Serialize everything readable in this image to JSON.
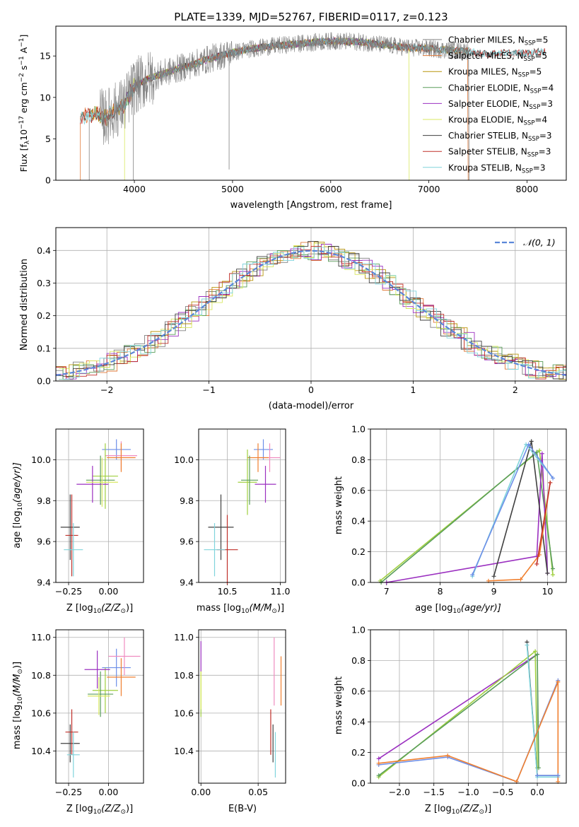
{
  "figure_title": "PLATE=1339, MJD=52767, FIBERID=0117, z=0.123",
  "colors": {
    "chabrier_miles": "#808080",
    "salpeter_miles": "#e07a3a",
    "kroupa_miles": "#b8960c",
    "chabrier_elodie": "#5a9e5a",
    "salpeter_elodie": "#9b30c0",
    "kroupa_elodie": "#d8e860",
    "chabrier_stelib": "#404040",
    "salpeter_stelib": "#c0302a",
    "kroupa_stelib": "#80d4dc",
    "normal_curve": "#5b87d8",
    "pink": "#f08cc0",
    "blue": "#6d8fe8",
    "orange": "#f08030",
    "lime": "#a0d040",
    "grid": "#b0b0b0"
  },
  "chart_data": [
    {
      "id": "spectrum",
      "type": "line",
      "xlabel": "wavelength [Angstrom, rest frame]",
      "ylabel_main": "Flux [f",
      "ylabel_sub": "λ",
      "ylabel_mid": "10",
      "ylabel_sup1": "−17",
      "ylabel_rest": " erg cm",
      "ylabel_sup2": "−2",
      "ylabel_rest2": " s",
      "ylabel_sup3": "−1",
      "ylabel_rest3": " A",
      "ylabel_sup4": "−1",
      "ylabel_end": "]",
      "xlim": [
        3200,
        8400
      ],
      "ylim": [
        0,
        18.6
      ],
      "xticks": [
        "4000",
        "5000",
        "6000",
        "7000",
        "8000"
      ],
      "yticks": [
        "0",
        "5",
        "10",
        "15"
      ],
      "legend_position": "top-right",
      "legend": [
        {
          "name": "Chabrier MILES, N",
          "sub": "SSP",
          "val": "=5",
          "color_key": "chabrier_miles"
        },
        {
          "name": "Salpeter MILES, N",
          "sub": "SSP",
          "val": "=5",
          "color_key": "salpeter_miles"
        },
        {
          "name": "Kroupa MILES, N",
          "sub": "SSP",
          "val": "=5",
          "color_key": "kroupa_miles"
        },
        {
          "name": "Chabrier ELODIE, N",
          "sub": "SSP",
          "val": "=4",
          "color_key": "chabrier_elodie"
        },
        {
          "name": "Salpeter ELODIE, N",
          "sub": "SSP",
          "val": "=3",
          "color_key": "salpeter_elodie"
        },
        {
          "name": "Kroupa ELODIE, N",
          "sub": "SSP",
          "val": "=4",
          "color_key": "kroupa_elodie"
        },
        {
          "name": "Chabrier STELIB, N",
          "sub": "SSP",
          "val": "=3",
          "color_key": "chabrier_stelib"
        },
        {
          "name": "Salpeter STELIB, N",
          "sub": "SSP",
          "val": "=3",
          "color_key": "salpeter_stelib"
        },
        {
          "name": "Kroupa STELIB, N",
          "sub": "SSP",
          "val": "=3",
          "color_key": "kroupa_stelib"
        }
      ],
      "continuum": [
        [
          3450,
          7.5
        ],
        [
          3600,
          8.0
        ],
        [
          3700,
          7.5
        ],
        [
          3800,
          8.4
        ],
        [
          3900,
          9.2
        ],
        [
          4000,
          11.3
        ],
        [
          4100,
          12.0
        ],
        [
          4200,
          12.5
        ],
        [
          4400,
          13.3
        ],
        [
          4600,
          14.0
        ],
        [
          4800,
          14.8
        ],
        [
          5000,
          15.4
        ],
        [
          5200,
          15.9
        ],
        [
          5500,
          16.3
        ],
        [
          5800,
          16.6
        ],
        [
          6000,
          16.8
        ],
        [
          6300,
          16.7
        ],
        [
          6500,
          16.4
        ],
        [
          6800,
          16.0
        ],
        [
          7000,
          15.9
        ],
        [
          7200,
          15.7
        ],
        [
          7400,
          15.6
        ],
        [
          7600,
          15.2
        ],
        [
          7800,
          15.4
        ],
        [
          8000,
          15.3
        ],
        [
          8200,
          15.6
        ]
      ],
      "observed_range": [
        3650,
        7400
      ]
    },
    {
      "id": "residuals",
      "type": "histogram",
      "xlabel": "(data-model)/error",
      "ylabel": "Normed distribution",
      "xlim": [
        -2.5,
        2.5
      ],
      "ylim": [
        0,
        0.47
      ],
      "xticks": [
        "−2",
        "−1",
        "0",
        "1",
        "2"
      ],
      "yticks": [
        "0.0",
        "0.1",
        "0.2",
        "0.3",
        "0.4"
      ],
      "legend_position": "top-right",
      "normal_label": "𝒩(0, 1)",
      "bin_width": 0.1
    },
    {
      "id": "age_vs_Z",
      "type": "errorbar",
      "xlabel": "Z [log",
      "xlabel_sub": "10",
      "xlabel_rest": "(Z/Z",
      "xlabel_sub2": "⊙",
      "xlabel_end": ")]",
      "ylabel": "age  [log",
      "ylabel_sub": "10",
      "ylabel_rest": "(age/yr)]",
      "xlim": [
        -0.33,
        0.22
      ],
      "ylim": [
        9.4,
        10.15
      ],
      "xticks": [
        {
          "v": -0.25,
          "t": "−0.25"
        },
        {
          "v": 0.0,
          "t": "0.00"
        }
      ],
      "yticks": [
        {
          "v": 9.4,
          "t": "9.4"
        },
        {
          "v": 9.6,
          "t": "9.6"
        },
        {
          "v": 9.8,
          "t": "9.8"
        },
        {
          "v": 10.0,
          "t": "10.0"
        }
      ],
      "points": [
        {
          "x": 0.05,
          "y": 10.05,
          "xerr": 0.09,
          "yerr": 0.05,
          "c": "blue"
        },
        {
          "x": 0.08,
          "y": 10.02,
          "xerr": 0.1,
          "yerr": 0.07,
          "c": "pink"
        },
        {
          "x": 0.08,
          "y": 10.01,
          "xerr": 0.09,
          "yerr": 0.07,
          "c": "orange"
        },
        {
          "x": -0.02,
          "y": 9.92,
          "xerr": 0.08,
          "yerr": 0.16,
          "c": "lime"
        },
        {
          "x": -0.05,
          "y": 9.9,
          "xerr": 0.09,
          "yerr": 0.12,
          "c": "chabrier_elodie"
        },
        {
          "x": -0.1,
          "y": 9.88,
          "xerr": 0.1,
          "yerr": 0.09,
          "c": "salpeter_elodie"
        },
        {
          "x": -0.04,
          "y": 9.89,
          "xerr": 0.1,
          "yerr": 0.12,
          "c": "kroupa_elodie"
        },
        {
          "x": -0.24,
          "y": 9.67,
          "xerr": 0.06,
          "yerr": 0.16,
          "c": "chabrier_stelib"
        },
        {
          "x": -0.23,
          "y": 9.63,
          "xerr": 0.04,
          "yerr": 0.2,
          "c": "salpeter_stelib"
        },
        {
          "x": -0.22,
          "y": 9.56,
          "xerr": 0.06,
          "yerr": 0.13,
          "c": "kroupa_stelib"
        }
      ]
    },
    {
      "id": "age_vs_mass",
      "type": "errorbar",
      "xlabel": "mass [log",
      "xlabel_sub": "10",
      "xlabel_rest": "(M/M",
      "xlabel_sub2": "⊙",
      "xlabel_end": ")]",
      "xlim": [
        10.23,
        11.05
      ],
      "ylim": [
        9.4,
        10.15
      ],
      "xticks": [
        {
          "v": 10.5,
          "t": "10.5"
        },
        {
          "v": 11.0,
          "t": "11.0"
        }
      ],
      "yticks": [
        {
          "v": 9.4,
          "t": "9.4"
        },
        {
          "v": 9.6,
          "t": "9.6"
        },
        {
          "v": 9.8,
          "t": "9.8"
        },
        {
          "v": 10.0,
          "t": "10.0"
        }
      ],
      "points": [
        {
          "x": 10.84,
          "y": 10.05,
          "xerr": 0.09,
          "yerr": 0.05,
          "c": "blue"
        },
        {
          "x": 10.9,
          "y": 10.01,
          "xerr": 0.1,
          "yerr": 0.07,
          "c": "pink"
        },
        {
          "x": 10.79,
          "y": 10.01,
          "xerr": 0.1,
          "yerr": 0.07,
          "c": "orange"
        },
        {
          "x": 10.69,
          "y": 9.89,
          "xerr": 0.09,
          "yerr": 0.16,
          "c": "lime"
        },
        {
          "x": 10.71,
          "y": 9.9,
          "xerr": 0.08,
          "yerr": 0.12,
          "c": "chabrier_elodie"
        },
        {
          "x": 10.86,
          "y": 9.88,
          "xerr": 0.1,
          "yerr": 0.09,
          "c": "salpeter_elodie"
        },
        {
          "x": 10.44,
          "y": 9.67,
          "xerr": 0.12,
          "yerr": 0.16,
          "c": "chabrier_stelib"
        },
        {
          "x": 10.5,
          "y": 9.56,
          "xerr": 0.1,
          "yerr": 0.17,
          "c": "salpeter_stelib"
        },
        {
          "x": 10.38,
          "y": 9.56,
          "xerr": 0.1,
          "yerr": 0.13,
          "c": "kroupa_stelib"
        }
      ]
    },
    {
      "id": "weight_vs_age",
      "type": "line",
      "xlabel": "age  [log",
      "xlabel_sub": "10",
      "xlabel_rest": "(age/yr)]",
      "ylabel": "mass weight",
      "xlim": [
        6.7,
        10.35
      ],
      "ylim": [
        0,
        1.0
      ],
      "xticks": [
        {
          "v": 7,
          "t": "7"
        },
        {
          "v": 8,
          "t": "8"
        },
        {
          "v": 9,
          "t": "9"
        },
        {
          "v": 10,
          "t": "10"
        }
      ],
      "yticks": [
        {
          "v": 0,
          "t": "0.0"
        },
        {
          "v": 0.2,
          "t": "0.2"
        },
        {
          "v": 0.4,
          "t": "0.4"
        },
        {
          "v": 0.6,
          "t": "0.6"
        },
        {
          "v": 0.8,
          "t": "0.8"
        },
        {
          "v": 1.0,
          "t": "1.0"
        }
      ],
      "series": [
        {
          "c": "lime",
          "pts": [
            [
              6.88,
              0.01
            ],
            [
              9.85,
              0.86
            ],
            [
              10.1,
              0.05
            ]
          ]
        },
        {
          "c": "chabrier_elodie",
          "pts": [
            [
              6.9,
              0.0
            ],
            [
              9.8,
              0.85
            ],
            [
              10.1,
              0.09
            ]
          ]
        },
        {
          "c": "salpeter_elodie",
          "pts": [
            [
              7.0,
              0.0
            ],
            [
              9.8,
              0.17
            ],
            [
              9.9,
              0.84
            ],
            [
              10.0,
              0.06
            ]
          ]
        },
        {
          "c": "chabrier_stelib",
          "pts": [
            [
              9.0,
              0.04
            ],
            [
              9.7,
              0.92
            ],
            [
              10.0,
              0.06
            ]
          ]
        },
        {
          "c": "kroupa_stelib",
          "pts": [
            [
              8.6,
              0.04
            ],
            [
              9.6,
              0.9
            ],
            [
              10.1,
              0.68
            ]
          ]
        },
        {
          "c": "blue",
          "pts": [
            [
              8.6,
              0.05
            ],
            [
              9.65,
              0.9
            ],
            [
              10.1,
              0.68
            ]
          ]
        },
        {
          "c": "orange",
          "pts": [
            [
              8.9,
              0.01
            ],
            [
              9.5,
              0.02
            ],
            [
              9.85,
              0.18
            ],
            [
              10.05,
              0.65
            ]
          ]
        },
        {
          "c": "salpeter_stelib",
          "pts": [
            [
              9.8,
              0.12
            ],
            [
              10.05,
              0.65
            ]
          ]
        }
      ]
    },
    {
      "id": "mass_vs_Z",
      "type": "errorbar",
      "xlabel": "Z [log",
      "xlabel_sub": "10",
      "xlabel_rest": "(Z/Z",
      "xlabel_sub2": "⊙",
      "xlabel_end": ")]",
      "ylabel": "mass [log",
      "ylabel_sub": "10",
      "ylabel_rest": "(M/M",
      "ylabel_sub2": "⊙",
      "ylabel_end": ")]",
      "xlim": [
        -0.33,
        0.22
      ],
      "ylim": [
        10.23,
        11.04
      ],
      "xticks": [
        {
          "v": -0.25,
          "t": "−0.25"
        },
        {
          "v": 0.0,
          "t": "0.00"
        }
      ],
      "yticks": [
        {
          "v": 10.4,
          "t": "10.4"
        },
        {
          "v": 10.6,
          "t": "10.6"
        },
        {
          "v": 10.8,
          "t": "10.8"
        },
        {
          "v": 11.0,
          "t": "11.0"
        }
      ],
      "points": [
        {
          "x": 0.05,
          "y": 10.84,
          "xerr": 0.09,
          "yerr": 0.1,
          "c": "blue"
        },
        {
          "x": 0.1,
          "y": 10.9,
          "xerr": 0.1,
          "yerr": 0.1,
          "c": "pink"
        },
        {
          "x": 0.08,
          "y": 10.79,
          "xerr": 0.09,
          "yerr": 0.1,
          "c": "orange"
        },
        {
          "x": -0.02,
          "y": 10.72,
          "xerr": 0.08,
          "yerr": 0.12,
          "c": "lime"
        },
        {
          "x": -0.05,
          "y": 10.7,
          "xerr": 0.08,
          "yerr": 0.12,
          "c": "chabrier_elodie"
        },
        {
          "x": -0.07,
          "y": 10.83,
          "xerr": 0.08,
          "yerr": 0.1,
          "c": "salpeter_elodie"
        },
        {
          "x": -0.06,
          "y": 10.69,
          "xerr": 0.07,
          "yerr": 0.1,
          "c": "kroupa_elodie"
        },
        {
          "x": -0.24,
          "y": 10.44,
          "xerr": 0.06,
          "yerr": 0.1,
          "c": "chabrier_stelib"
        },
        {
          "x": -0.23,
          "y": 10.5,
          "xerr": 0.04,
          "yerr": 0.12,
          "c": "salpeter_stelib"
        },
        {
          "x": -0.22,
          "y": 10.38,
          "xerr": 0.04,
          "yerr": 0.12,
          "c": "kroupa_stelib"
        }
      ]
    },
    {
      "id": "mass_vs_ebv",
      "type": "errorbar",
      "xlabel": "E(B-V)",
      "xlim": [
        -0.002,
        0.074
      ],
      "ylim": [
        10.23,
        11.04
      ],
      "xticks": [
        {
          "v": 0.0,
          "t": "0.00"
        },
        {
          "v": 0.05,
          "t": "0.05"
        }
      ],
      "yticks": [
        {
          "v": 10.4,
          "t": "10.4"
        },
        {
          "v": 10.6,
          "t": "10.6"
        },
        {
          "v": 10.8,
          "t": "10.8"
        },
        {
          "v": 11.0,
          "t": "11.0"
        }
      ],
      "points": [
        {
          "x": 0.0,
          "y": 10.9,
          "xerr": 0,
          "yerr": 0.08,
          "c": "salpeter_elodie"
        },
        {
          "x": 0.0,
          "y": 10.7,
          "xerr": 0,
          "yerr": 0.12,
          "c": "lime"
        },
        {
          "x": 0.0,
          "y": 10.72,
          "xerr": 0,
          "yerr": 0.1,
          "c": "kroupa_elodie"
        },
        {
          "x": 0.064,
          "y": 10.82,
          "xerr": 0,
          "yerr": 0.18,
          "c": "pink"
        },
        {
          "x": 0.07,
          "y": 10.77,
          "xerr": 0,
          "yerr": 0.13,
          "c": "orange"
        },
        {
          "x": 0.061,
          "y": 10.5,
          "xerr": 0,
          "yerr": 0.12,
          "c": "salpeter_stelib"
        },
        {
          "x": 0.063,
          "y": 10.44,
          "xerr": 0,
          "yerr": 0.1,
          "c": "chabrier_stelib"
        },
        {
          "x": 0.065,
          "y": 10.38,
          "xerr": 0,
          "yerr": 0.12,
          "c": "kroupa_stelib"
        }
      ]
    },
    {
      "id": "weight_vs_Z",
      "type": "line",
      "xlabel": "Z [log",
      "xlabel_sub": "10",
      "xlabel_rest": "(Z/Z",
      "xlabel_sub2": "⊙",
      "xlabel_end": ")]",
      "ylabel": "mass weight",
      "xlim": [
        -2.42,
        0.42
      ],
      "ylim": [
        0,
        1.0
      ],
      "xticks": [
        {
          "v": -2.0,
          "t": "−2.0"
        },
        {
          "v": -1.5,
          "t": "−1.5"
        },
        {
          "v": -1.0,
          "t": "−1.0"
        },
        {
          "v": -0.5,
          "t": "−0.5"
        },
        {
          "v": 0.0,
          "t": "0.0"
        }
      ],
      "yticks": [
        {
          "v": 0,
          "t": "0.0"
        },
        {
          "v": 0.2,
          "t": "0.2"
        },
        {
          "v": 0.4,
          "t": "0.4"
        },
        {
          "v": 0.6,
          "t": "0.6"
        },
        {
          "v": 0.8,
          "t": "0.8"
        },
        {
          "v": 1.0,
          "t": "1.0"
        }
      ],
      "series": [
        {
          "c": "salpeter_elodie",
          "pts": [
            [
              -2.3,
              0.16
            ],
            [
              0.0,
              0.84
            ]
          ]
        },
        {
          "c": "lime",
          "pts": [
            [
              -2.3,
              0.04
            ],
            [
              -0.03,
              0.86
            ],
            [
              0.0,
              0.1
            ]
          ]
        },
        {
          "c": "chabrier_elodie",
          "pts": [
            [
              -2.3,
              0.05
            ],
            [
              0.0,
              0.84
            ],
            [
              0.02,
              0.1
            ]
          ]
        },
        {
          "c": "chabrier_stelib",
          "pts": [
            [
              -0.15,
              0.92
            ],
            [
              0.0,
              0.05
            ],
            [
              0.3,
              0.05
            ]
          ]
        },
        {
          "c": "kroupa_stelib",
          "pts": [
            [
              -0.15,
              0.9
            ],
            [
              0.0,
              0.04
            ],
            [
              0.3,
              0.04
            ]
          ]
        },
        {
          "c": "blue",
          "pts": [
            [
              -2.3,
              0.12
            ],
            [
              -1.3,
              0.17
            ],
            [
              -0.3,
              0.01
            ],
            [
              0.3,
              0.67
            ]
          ]
        },
        {
          "c": "orange",
          "pts": [
            [
              -2.3,
              0.13
            ],
            [
              -1.3,
              0.18
            ],
            [
              -0.3,
              0.01
            ],
            [
              0.3,
              0.66
            ],
            [
              0.3,
              0.01
            ]
          ]
        },
        {
          "c": "blue",
          "pts": [
            [
              0.0,
              0.05
            ],
            [
              0.3,
              0.05
            ]
          ]
        }
      ]
    }
  ]
}
